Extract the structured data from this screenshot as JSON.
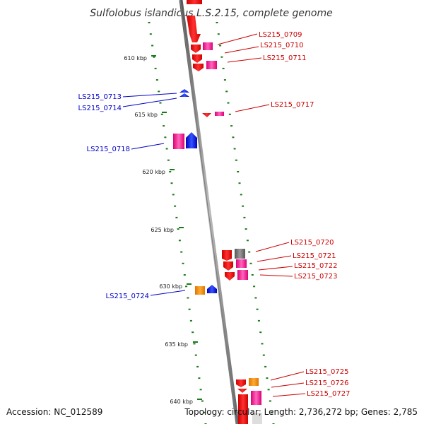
{
  "title": "Sulfolobus islandicus L.S.2.15, complete genome",
  "footer": {
    "accession": "Accession: NC_012589",
    "summary": "Topology: circular; Length: 2,736,272 bp; Genes: 2,785"
  },
  "colors": {
    "forward_label": "#0000cc",
    "reverse_label": "#cc0000",
    "tick_mark": "#1a7a1a",
    "backbone": "#888888"
  },
  "ticks": [
    {
      "id": "610",
      "label": "610 kbp"
    },
    {
      "id": "615",
      "label": "615 kbp"
    },
    {
      "id": "620",
      "label": "620 kbp"
    },
    {
      "id": "625",
      "label": "625 kbp"
    },
    {
      "id": "630",
      "label": "630 kbp"
    },
    {
      "id": "635",
      "label": "635 kbp"
    },
    {
      "id": "640",
      "label": "640 kbp"
    }
  ],
  "genes": [
    {
      "id": "LS215_0709",
      "label": "LS215_0709",
      "strand": "reverse"
    },
    {
      "id": "LS215_0710",
      "label": "LS215_0710",
      "strand": "reverse"
    },
    {
      "id": "LS215_0711",
      "label": "LS215_0711",
      "strand": "reverse"
    },
    {
      "id": "LS215_0713",
      "label": "LS215_0713",
      "strand": "forward"
    },
    {
      "id": "LS215_0714",
      "label": "LS215_0714",
      "strand": "forward"
    },
    {
      "id": "LS215_0717",
      "label": "LS215_0717",
      "strand": "reverse"
    },
    {
      "id": "LS215_0718",
      "label": "LS215_0718",
      "strand": "forward"
    },
    {
      "id": "LS215_0720",
      "label": "LS215_0720",
      "strand": "reverse"
    },
    {
      "id": "LS215_0721",
      "label": "LS215_0721",
      "strand": "reverse"
    },
    {
      "id": "LS215_0722",
      "label": "LS215_0722",
      "strand": "reverse"
    },
    {
      "id": "LS215_0723",
      "label": "LS215_0723",
      "strand": "reverse"
    },
    {
      "id": "LS215_0724",
      "label": "LS215_0724",
      "strand": "forward"
    },
    {
      "id": "LS215_0725",
      "label": "LS215_0725",
      "strand": "reverse"
    },
    {
      "id": "LS215_0726",
      "label": "LS215_0726",
      "strand": "reverse"
    },
    {
      "id": "LS215_0727",
      "label": "LS215_0727",
      "strand": "reverse"
    }
  ]
}
